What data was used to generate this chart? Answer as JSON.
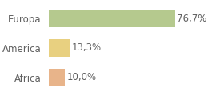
{
  "categories": [
    "Europa",
    "America",
    "Africa"
  ],
  "values": [
    76.7,
    13.3,
    10.0
  ],
  "labels": [
    "76,7%",
    "13,3%",
    "10,0%"
  ],
  "bar_colors": [
    "#b5c98e",
    "#e8d080",
    "#e8b48a"
  ],
  "background_color": "#ffffff",
  "xlim": [
    0,
    105
  ],
  "bar_height": 0.6,
  "label_fontsize": 8.5,
  "category_fontsize": 8.5,
  "grid_color": "#dddddd",
  "text_color": "#606060"
}
